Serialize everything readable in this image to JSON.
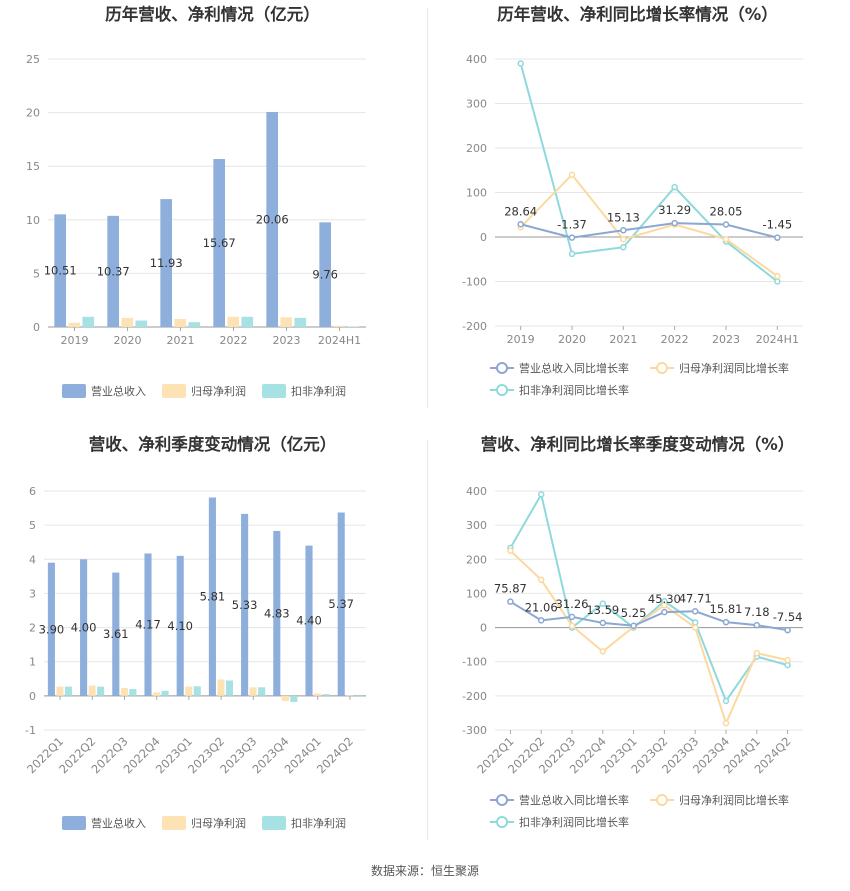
{
  "source": "数据来源：恒生聚源",
  "colors": {
    "revenue": "#8eaedc",
    "net_profit": "#fde3b4",
    "deducted_profit": "#a6e1e4",
    "revenue_line": "#8ba7d2",
    "net_line": "#fbd9a0",
    "deducted_line": "#8fd9dc"
  },
  "chart_data": [
    {
      "type": "bar",
      "title": "历年营收、净利情况（亿元）",
      "categories": [
        "2019",
        "2020",
        "2021",
        "2022",
        "2023",
        "2024H1"
      ],
      "yticks": [
        "0",
        "5",
        "10",
        "15",
        "20",
        "25"
      ],
      "ylim": [
        0,
        25
      ],
      "series": [
        {
          "name": "营业总收入",
          "values": [
            10.51,
            10.37,
            11.93,
            15.67,
            20.06,
            9.76
          ],
          "labels": [
            "10.51",
            "10.37",
            "11.93",
            "15.67",
            "20.06",
            "9.76"
          ]
        },
        {
          "name": "归母净利润",
          "values": [
            0.4,
            0.85,
            0.75,
            0.95,
            0.9,
            0.12
          ]
        },
        {
          "name": "扣非净利润",
          "values": [
            0.95,
            0.6,
            0.45,
            0.95,
            0.85,
            0.05
          ]
        }
      ],
      "grid": true,
      "legend": "bottom"
    },
    {
      "type": "line",
      "title": "历年营收、净利同比增长率情况（%）",
      "categories": [
        "2019",
        "2020",
        "2021",
        "2022",
        "2023",
        "2024H1"
      ],
      "yticks": [
        "-200",
        "-100",
        "0",
        "100",
        "200",
        "300",
        "400"
      ],
      "ylim": [
        -200,
        400
      ],
      "series": [
        {
          "name": "营业总收入同比增长率",
          "values": [
            28.64,
            -1.37,
            15.13,
            31.29,
            28.05,
            -1.45
          ],
          "labels": [
            "28.64",
            "-1.37",
            "15.13",
            "31.29",
            "28.05",
            "-1.45"
          ]
        },
        {
          "name": "归母净利润同比增长率",
          "values": [
            22,
            140,
            -5,
            28,
            -5,
            -88
          ]
        },
        {
          "name": "扣非净利润同比增长率",
          "values": [
            390,
            -38,
            -23,
            112,
            -10,
            -100
          ]
        }
      ],
      "grid": true,
      "legend": "bottom"
    },
    {
      "type": "bar",
      "title": "营收、净利季度变动情况（亿元）",
      "categories": [
        "2022Q1",
        "2022Q2",
        "2022Q3",
        "2022Q4",
        "2023Q1",
        "2023Q2",
        "2023Q3",
        "2023Q4",
        "2024Q1",
        "2024Q2"
      ],
      "yticks": [
        "-1",
        "0",
        "1",
        "2",
        "3",
        "4",
        "5",
        "6"
      ],
      "ylim": [
        -1,
        6
      ],
      "series": [
        {
          "name": "营业总收入",
          "values": [
            3.9,
            4.0,
            3.61,
            4.17,
            4.1,
            5.81,
            5.33,
            4.83,
            4.4,
            5.37
          ],
          "labels": [
            "3.90",
            "4.00",
            "3.61",
            "4.17",
            "4.10",
            "5.81",
            "5.33",
            "4.83",
            "4.40",
            "5.37"
          ]
        },
        {
          "name": "归母净利润",
          "values": [
            0.27,
            0.3,
            0.23,
            0.1,
            0.27,
            0.48,
            0.25,
            -0.15,
            0.07,
            0.02
          ]
        },
        {
          "name": "扣非净利润",
          "values": [
            0.27,
            0.27,
            0.2,
            0.15,
            0.28,
            0.45,
            0.25,
            -0.18,
            0.05,
            -0.03
          ]
        }
      ],
      "grid": true,
      "legend": "bottom"
    },
    {
      "type": "line",
      "title": "营收、净利同比增长率季度变动情况（%）",
      "categories": [
        "2022Q1",
        "2022Q2",
        "2022Q3",
        "2022Q4",
        "2023Q1",
        "2023Q2",
        "2023Q3",
        "2023Q4",
        "2024Q1",
        "2024Q2"
      ],
      "yticks": [
        "-300",
        "-200",
        "-100",
        "0",
        "100",
        "200",
        "300",
        "400"
      ],
      "ylim": [
        -300,
        400
      ],
      "series": [
        {
          "name": "营业总收入同比增长率",
          "values": [
            75.87,
            21.06,
            31.26,
            13.59,
            5.25,
            45.3,
            47.71,
            15.81,
            7.18,
            -7.54
          ],
          "labels": [
            "75.87",
            "21.06",
            "31.26",
            "13.59",
            "5.25",
            "45.30",
            "47.71",
            "15.81",
            "7.18",
            "-7.54"
          ]
        },
        {
          "name": "归母净利润同比增长率",
          "values": [
            225,
            140,
            5,
            -70,
            2,
            65,
            0,
            -280,
            -75,
            -95
          ]
        },
        {
          "name": "扣非净利润同比增长率",
          "values": [
            233,
            390,
            0,
            70,
            0,
            77,
            15,
            -215,
            -85,
            -110
          ]
        }
      ],
      "grid": true,
      "legend": "bottom"
    }
  ]
}
